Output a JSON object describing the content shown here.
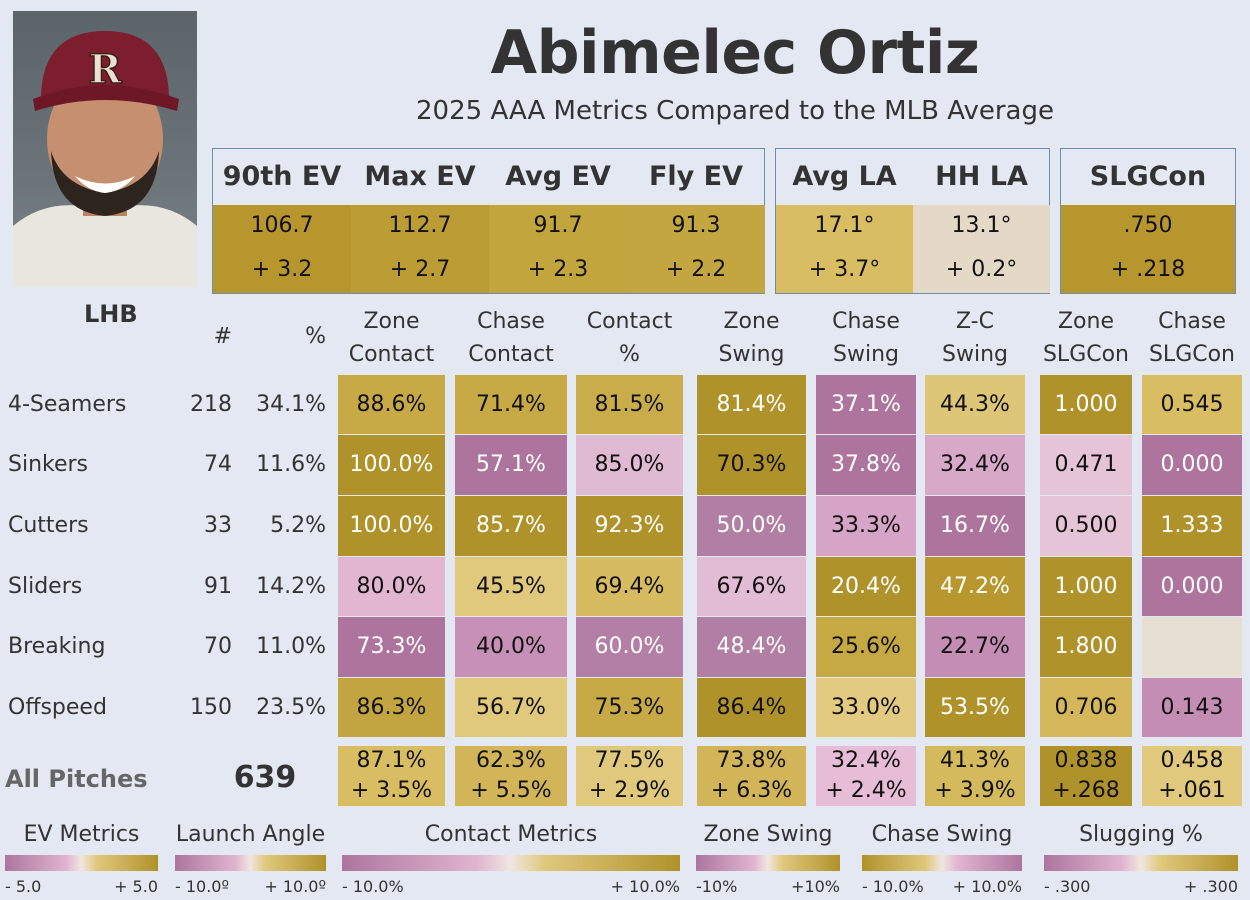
{
  "header": {
    "title": "Abimelec Ortiz",
    "subtitle": "2025 AAA Metrics Compared to the MLB Average",
    "batter_side": "LHB"
  },
  "metric_boxes": [
    {
      "label": "90th EV",
      "value": "106.7",
      "diff": "+ 3.2",
      "color": "#b8962e",
      "text": "#111"
    },
    {
      "label": "Max EV",
      "value": "112.7",
      "diff": "+ 2.7",
      "color": "#bc9c35",
      "text": "#111"
    },
    {
      "label": "Avg EV",
      "value": "91.7",
      "diff": "+ 2.3",
      "color": "#c2a53d",
      "text": "#111"
    },
    {
      "label": "Fly EV",
      "value": "91.3",
      "diff": "+ 2.2",
      "color": "#c4a641",
      "text": "#111"
    },
    {
      "label": "Avg LA",
      "value": "17.1°",
      "diff": "+ 3.7°",
      "color": "#d8bd62",
      "text": "#111"
    },
    {
      "label": "HH LA",
      "value": "13.1°",
      "diff": "+ 0.2°",
      "color": "#e4d9c7",
      "text": "#111"
    },
    {
      "label": "SLGCon",
      "value": ".750",
      "diff": "+ .218",
      "color": "#b8962e",
      "text": "#111"
    }
  ],
  "table": {
    "count_header": "#",
    "pct_header": "%",
    "columns": [
      [
        "Zone",
        "Contact"
      ],
      [
        "Chase",
        "Contact"
      ],
      [
        "Contact",
        "%"
      ],
      [
        "Zone",
        "Swing"
      ],
      [
        "Chase",
        "Swing"
      ],
      [
        "Z-C",
        "Swing"
      ],
      [
        "Zone",
        "SLGCon"
      ],
      [
        "Chase",
        "SLGCon"
      ]
    ],
    "rows": [
      {
        "pitch": "4-Seamers",
        "count": "218",
        "pct": "34.1%",
        "cells": [
          {
            "v": "88.6%",
            "c": "#c7aa46",
            "t": "#111"
          },
          {
            "v": "71.4%",
            "c": "#c7aa46",
            "t": "#111"
          },
          {
            "v": "81.5%",
            "c": "#c9ad4b",
            "t": "#111"
          },
          {
            "v": "81.4%",
            "c": "#b0922a",
            "t": "#fff"
          },
          {
            "v": "37.1%",
            "c": "#ad759e",
            "t": "#fff"
          },
          {
            "v": "44.3%",
            "c": "#ddc677",
            "t": "#111"
          },
          {
            "v": "1.000",
            "c": "#b0922a",
            "t": "#fff"
          },
          {
            "v": "0.545",
            "c": "#d8bd62",
            "t": "#111"
          }
        ]
      },
      {
        "pitch": "Sinkers",
        "count": "74",
        "pct": "11.6%",
        "cells": [
          {
            "v": "100.0%",
            "c": "#b0922a",
            "t": "#fff"
          },
          {
            "v": "57.1%",
            "c": "#ad759e",
            "t": "#fff"
          },
          {
            "v": "85.0%",
            "c": "#e0b9d2",
            "t": "#111"
          },
          {
            "v": "70.3%",
            "c": "#b0922a",
            "t": "#111"
          },
          {
            "v": "37.8%",
            "c": "#ad759e",
            "t": "#fff"
          },
          {
            "v": "32.4%",
            "c": "#d8a8c8",
            "t": "#111"
          },
          {
            "v": "0.471",
            "c": "#e6c4d8",
            "t": "#111"
          },
          {
            "v": "0.000",
            "c": "#ad759e",
            "t": "#fff"
          }
        ]
      },
      {
        "pitch": "Cutters",
        "count": "33",
        "pct": "5.2%",
        "cells": [
          {
            "v": "100.0%",
            "c": "#b0922a",
            "t": "#fff"
          },
          {
            "v": "85.7%",
            "c": "#b0922a",
            "t": "#fff"
          },
          {
            "v": "92.3%",
            "c": "#b0922a",
            "t": "#fff"
          },
          {
            "v": "50.0%",
            "c": "#b17ea4",
            "t": "#fff"
          },
          {
            "v": "33.3%",
            "c": "#d6a4c6",
            "t": "#111"
          },
          {
            "v": "16.7%",
            "c": "#ad759e",
            "t": "#fff"
          },
          {
            "v": "0.500",
            "c": "#e6c4d8",
            "t": "#111"
          },
          {
            "v": "1.333",
            "c": "#b0922a",
            "t": "#fff"
          }
        ]
      },
      {
        "pitch": "Sliders",
        "count": "91",
        "pct": "14.2%",
        "cells": [
          {
            "v": "80.0%",
            "c": "#e2b6d1",
            "t": "#111"
          },
          {
            "v": "45.5%",
            "c": "#e0c87c",
            "t": "#111"
          },
          {
            "v": "69.4%",
            "c": "#d6bb60",
            "t": "#111"
          },
          {
            "v": "67.6%",
            "c": "#e2bcd4",
            "t": "#111"
          },
          {
            "v": "20.4%",
            "c": "#b0922a",
            "t": "#fff"
          },
          {
            "v": "47.2%",
            "c": "#b8982e",
            "t": "#fff"
          },
          {
            "v": "1.000",
            "c": "#b0922a",
            "t": "#fff"
          },
          {
            "v": "0.000",
            "c": "#ad759e",
            "t": "#fff"
          }
        ]
      },
      {
        "pitch": "Breaking",
        "count": "70",
        "pct": "11.0%",
        "cells": [
          {
            "v": "73.3%",
            "c": "#ad759e",
            "t": "#fff"
          },
          {
            "v": "40.0%",
            "c": "#c790b6",
            "t": "#111"
          },
          {
            "v": "60.0%",
            "c": "#b47fa6",
            "t": "#fff"
          },
          {
            "v": "48.4%",
            "c": "#b17ea4",
            "t": "#fff"
          },
          {
            "v": "25.6%",
            "c": "#c6a943",
            "t": "#111"
          },
          {
            "v": "22.7%",
            "c": "#c48db4",
            "t": "#111"
          },
          {
            "v": "1.800",
            "c": "#b0922a",
            "t": "#fff"
          },
          {
            "v": "",
            "c": "#e6dfd4",
            "t": "#111"
          }
        ]
      },
      {
        "pitch": "Offspeed",
        "count": "150",
        "pct": "23.5%",
        "cells": [
          {
            "v": "86.3%",
            "c": "#c2a440",
            "t": "#111"
          },
          {
            "v": "56.7%",
            "c": "#e0c87c",
            "t": "#111"
          },
          {
            "v": "75.3%",
            "c": "#c7aa46",
            "t": "#111"
          },
          {
            "v": "86.4%",
            "c": "#b0922a",
            "t": "#111"
          },
          {
            "v": "33.0%",
            "c": "#e2ca80",
            "t": "#111"
          },
          {
            "v": "53.5%",
            "c": "#b0922a",
            "t": "#fff"
          },
          {
            "v": "0.706",
            "c": "#d4b75b",
            "t": "#111"
          },
          {
            "v": "0.143",
            "c": "#c48db4",
            "t": "#111"
          }
        ]
      }
    ],
    "all": {
      "label": "All Pitches",
      "count": "639",
      "cells": [
        {
          "v": "87.1%",
          "d": "+ 3.5%",
          "c": "#d8bd62",
          "t": "#111"
        },
        {
          "v": "62.3%",
          "d": "+ 5.5%",
          "c": "#d1b558",
          "t": "#111"
        },
        {
          "v": "77.5%",
          "d": "+ 2.9%",
          "c": "#e0c87c",
          "t": "#111"
        },
        {
          "v": "73.8%",
          "d": "+ 6.3%",
          "c": "#d1b558",
          "t": "#111"
        },
        {
          "v": "32.4%",
          "d": "+ 2.4%",
          "c": "#e6bcd6",
          "t": "#111"
        },
        {
          "v": "41.3%",
          "d": "+ 3.9%",
          "c": "#d4b95d",
          "t": "#111"
        },
        {
          "v": "0.838",
          "d": "+.268",
          "c": "#b0922a",
          "t": "#111"
        },
        {
          "v": "0.458",
          "d": "+.061",
          "c": "#e0c87c",
          "t": "#111"
        }
      ]
    }
  },
  "legends": [
    {
      "title": "EV Metrics",
      "min": "- 5.0",
      "max": "+ 5.0",
      "reverse": false
    },
    {
      "title": "Launch Angle",
      "min": "- 10.0º",
      "max": "+ 10.0º",
      "reverse": false
    },
    {
      "title": "Contact Metrics",
      "min": "- 10.0%",
      "max": "+ 10.0%",
      "reverse": false
    },
    {
      "title": "Zone Swing",
      "min": "-10%",
      "max": "+10%",
      "reverse": false
    },
    {
      "title": "Chase Swing",
      "min": "- 10.0%",
      "max": "+ 10.0%",
      "reverse": true
    },
    {
      "title": "Slugging %",
      "min": "- .300",
      "max": "+ .300",
      "reverse": false
    }
  ],
  "colors": {
    "gold": "#b0922a",
    "pink": "#ad759e",
    "neutral": "#e6dfd4",
    "border": "#6d8fae"
  }
}
